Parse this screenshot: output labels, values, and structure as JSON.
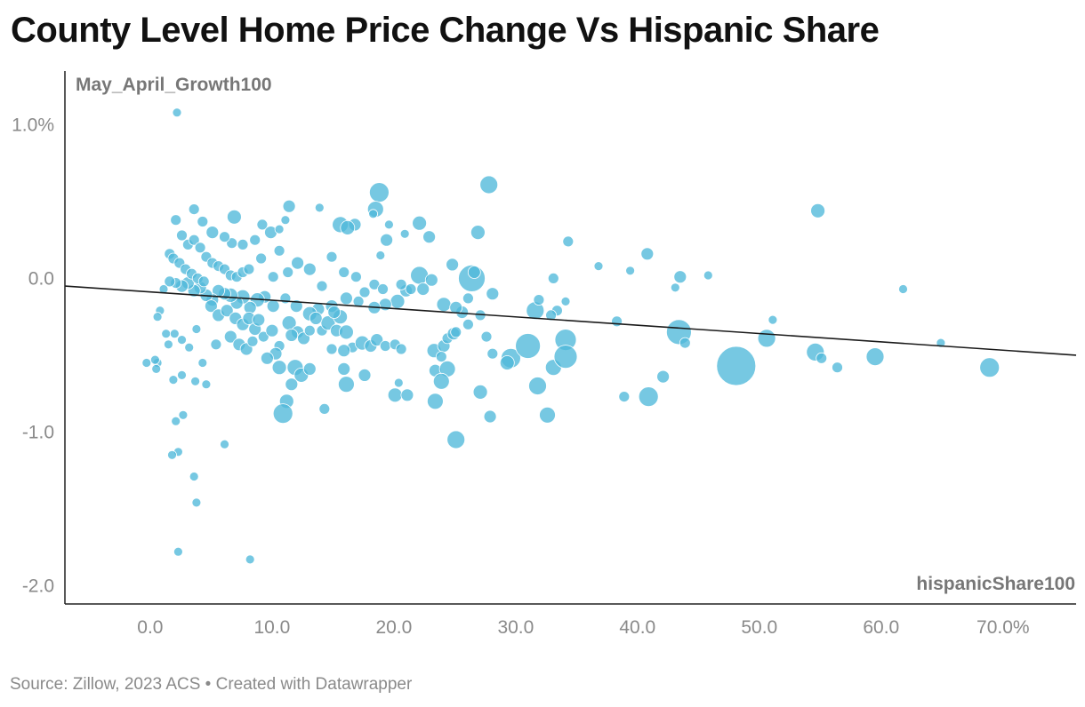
{
  "title": "County Level Home Price Change Vs Hispanic Share",
  "footer": "Source: Zillow, 2023 ACS • Created with Datawrapper",
  "chart_data": {
    "type": "scatter",
    "title": "County Level Home Price Change Vs Hispanic Share",
    "xlabel": "hispanicShare100",
    "ylabel": "May_April_Growth100",
    "xlim": [
      -7,
      76
    ],
    "ylim": [
      -2.12,
      1.35
    ],
    "x_ticks": [
      {
        "value": 0,
        "label": "0.0"
      },
      {
        "value": 10,
        "label": "10.0"
      },
      {
        "value": 20,
        "label": "20.0"
      },
      {
        "value": 30,
        "label": "30.0"
      },
      {
        "value": 40,
        "label": "40.0"
      },
      {
        "value": 50,
        "label": "50.0"
      },
      {
        "value": 60,
        "label": "60.0"
      },
      {
        "value": 70,
        "label": "70.0%"
      }
    ],
    "y_ticks": [
      {
        "value": 1,
        "label": "1.0%"
      },
      {
        "value": 0,
        "label": "0.0"
      },
      {
        "value": -1,
        "label": "-1.0"
      },
      {
        "value": -2,
        "label": "-2.0"
      }
    ],
    "grid": false,
    "color": "#4fb9da",
    "trendline": {
      "x": [
        -7,
        76
      ],
      "y": [
        -0.05,
        -0.5
      ]
    },
    "points": [
      [
        2.2,
        1.08,
        5
      ],
      [
        27.8,
        0.61,
        10
      ],
      [
        18.8,
        0.56,
        11
      ],
      [
        54.8,
        0.44,
        8
      ],
      [
        26.4,
        0.0,
        15
      ],
      [
        22.1,
        0.36,
        8
      ],
      [
        22.9,
        0.27,
        7
      ],
      [
        26.9,
        0.3,
        8
      ],
      [
        18.5,
        0.45,
        9
      ],
      [
        19.4,
        0.25,
        7
      ],
      [
        16.8,
        0.35,
        7
      ],
      [
        15.6,
        0.35,
        9
      ],
      [
        16.2,
        0.33,
        8
      ],
      [
        11.4,
        0.47,
        7
      ],
      [
        6.9,
        0.4,
        8
      ],
      [
        9.2,
        0.35,
        6
      ],
      [
        34.3,
        0.24,
        6
      ],
      [
        40.8,
        0.16,
        7
      ],
      [
        36.8,
        0.08,
        5
      ],
      [
        39.4,
        0.05,
        5
      ],
      [
        43.5,
        0.01,
        7
      ],
      [
        45.8,
        0.02,
        5
      ],
      [
        43.1,
        -0.06,
        5
      ],
      [
        61.8,
        -0.07,
        5
      ],
      [
        33.1,
        0.0,
        6
      ],
      [
        24.8,
        0.09,
        7
      ],
      [
        22.1,
        0.02,
        10
      ],
      [
        23.1,
        -0.01,
        7
      ],
      [
        21.0,
        -0.08,
        7
      ],
      [
        20.3,
        -0.15,
        8
      ],
      [
        19.3,
        -0.17,
        7
      ],
      [
        18.4,
        -0.19,
        7
      ],
      [
        17.1,
        -0.15,
        6
      ],
      [
        16.1,
        -0.13,
        7
      ],
      [
        14.9,
        -0.18,
        7
      ],
      [
        13.8,
        -0.2,
        7
      ],
      [
        13.1,
        -0.23,
        8
      ],
      [
        12.0,
        -0.18,
        7
      ],
      [
        11.1,
        -0.13,
        6
      ],
      [
        10.1,
        -0.18,
        7
      ],
      [
        9.4,
        -0.12,
        7
      ],
      [
        8.8,
        -0.14,
        8
      ],
      [
        8.2,
        -0.19,
        7
      ],
      [
        7.6,
        -0.12,
        8
      ],
      [
        7.1,
        -0.16,
        7
      ],
      [
        6.6,
        -0.11,
        8
      ],
      [
        6.1,
        -0.1,
        7
      ],
      [
        5.6,
        -0.08,
        7
      ],
      [
        5.1,
        -0.14,
        7
      ],
      [
        4.6,
        -0.11,
        7
      ],
      [
        4.1,
        -0.06,
        7
      ],
      [
        3.6,
        -0.08,
        7
      ],
      [
        3.1,
        -0.03,
        7
      ],
      [
        2.6,
        -0.05,
        7
      ],
      [
        2.1,
        -0.03,
        6
      ],
      [
        1.6,
        -0.02,
        6
      ],
      [
        1.1,
        -0.07,
        5
      ],
      [
        0.8,
        -0.21,
        5
      ],
      [
        0.6,
        -0.25,
        5
      ],
      [
        1.3,
        -0.36,
        5
      ],
      [
        1.5,
        -0.43,
        5
      ],
      [
        2.0,
        -0.36,
        5
      ],
      [
        2.6,
        -0.4,
        5
      ],
      [
        3.2,
        -0.45,
        5
      ],
      [
        3.8,
        -0.33,
        5
      ],
      [
        4.3,
        -0.55,
        5
      ],
      [
        2.6,
        -0.63,
        5
      ],
      [
        1.9,
        -0.66,
        5
      ],
      [
        3.7,
        -0.67,
        5
      ],
      [
        4.6,
        -0.69,
        5
      ],
      [
        0.6,
        -0.55,
        5
      ],
      [
        0.5,
        -0.59,
        5
      ],
      [
        0.4,
        -0.53,
        5
      ],
      [
        -0.3,
        -0.55,
        5
      ],
      [
        2.7,
        -0.89,
        5
      ],
      [
        2.1,
        -0.93,
        5
      ],
      [
        6.1,
        -1.08,
        5
      ],
      [
        2.3,
        -1.13,
        5
      ],
      [
        1.8,
        -1.15,
        5
      ],
      [
        3.6,
        -1.29,
        5
      ],
      [
        3.8,
        -1.46,
        5
      ],
      [
        2.3,
        -1.78,
        5
      ],
      [
        8.2,
        -1.83,
        5
      ],
      [
        5.0,
        -0.18,
        7
      ],
      [
        5.6,
        -0.24,
        7
      ],
      [
        6.3,
        -0.21,
        7
      ],
      [
        7.0,
        -0.26,
        7
      ],
      [
        7.6,
        -0.3,
        7
      ],
      [
        8.1,
        -0.26,
        7
      ],
      [
        8.6,
        -0.33,
        7
      ],
      [
        8.9,
        -0.27,
        7
      ],
      [
        6.6,
        -0.38,
        7
      ],
      [
        7.3,
        -0.43,
        7
      ],
      [
        7.9,
        -0.46,
        7
      ],
      [
        8.4,
        -0.41,
        6
      ],
      [
        5.4,
        -0.43,
        6
      ],
      [
        9.3,
        -0.38,
        6
      ],
      [
        10.0,
        -0.34,
        7
      ],
      [
        10.6,
        -0.44,
        6
      ],
      [
        11.4,
        -0.29,
        8
      ],
      [
        12.1,
        -0.35,
        7
      ],
      [
        12.6,
        -0.39,
        7
      ],
      [
        13.1,
        -0.34,
        6
      ],
      [
        14.1,
        -0.34,
        6
      ],
      [
        14.6,
        -0.29,
        8
      ],
      [
        15.3,
        -0.34,
        7
      ],
      [
        16.1,
        -0.35,
        8
      ],
      [
        16.6,
        -0.45,
        6
      ],
      [
        17.4,
        -0.42,
        8
      ],
      [
        18.1,
        -0.44,
        7
      ],
      [
        18.6,
        -0.4,
        7
      ],
      [
        19.3,
        -0.44,
        6
      ],
      [
        20.1,
        -0.43,
        6
      ],
      [
        20.6,
        -0.46,
        6
      ],
      [
        15.6,
        -0.25,
        8
      ],
      [
        15.1,
        -0.22,
        7
      ],
      [
        13.6,
        -0.26,
        7
      ],
      [
        11.6,
        -0.37,
        7
      ],
      [
        10.3,
        -0.49,
        7
      ],
      [
        9.6,
        -0.52,
        7
      ],
      [
        10.6,
        -0.58,
        8
      ],
      [
        11.9,
        -0.58,
        9
      ],
      [
        12.4,
        -0.63,
        8
      ],
      [
        13.1,
        -0.59,
        7
      ],
      [
        14.9,
        -0.46,
        6
      ],
      [
        15.9,
        -0.47,
        7
      ],
      [
        15.9,
        -0.59,
        7
      ],
      [
        16.1,
        -0.69,
        9
      ],
      [
        17.6,
        -0.63,
        7
      ],
      [
        11.2,
        -0.8,
        8
      ],
      [
        11.6,
        -0.69,
        7
      ],
      [
        10.9,
        -0.88,
        11
      ],
      [
        14.3,
        -0.85,
        6
      ],
      [
        20.1,
        -0.76,
        8
      ],
      [
        21.1,
        -0.76,
        7
      ],
      [
        20.4,
        -0.68,
        5
      ],
      [
        23.3,
        -0.47,
        8
      ],
      [
        24.1,
        -0.44,
        7
      ],
      [
        24.4,
        -0.39,
        6
      ],
      [
        24.9,
        -0.36,
        7
      ],
      [
        23.9,
        -0.51,
        6
      ],
      [
        23.4,
        -0.6,
        7
      ],
      [
        24.4,
        -0.59,
        9
      ],
      [
        23.9,
        -0.67,
        9
      ],
      [
        23.4,
        -0.8,
        9
      ],
      [
        25.1,
        -0.35,
        6
      ],
      [
        25.6,
        -0.22,
        7
      ],
      [
        26.1,
        -0.13,
        6
      ],
      [
        27.1,
        -0.24,
        6
      ],
      [
        26.1,
        -0.3,
        6
      ],
      [
        27.6,
        -0.38,
        6
      ],
      [
        28.1,
        -0.49,
        6
      ],
      [
        27.1,
        -0.74,
        8
      ],
      [
        27.9,
        -0.9,
        7
      ],
      [
        25.1,
        -1.05,
        10
      ],
      [
        29.6,
        -0.52,
        11
      ],
      [
        29.3,
        -0.55,
        8
      ],
      [
        31.0,
        -0.44,
        14
      ],
      [
        31.6,
        -0.21,
        10
      ],
      [
        31.8,
        -0.7,
        10
      ],
      [
        32.6,
        -0.89,
        9
      ],
      [
        33.1,
        -0.58,
        9
      ],
      [
        33.4,
        -0.21,
        6
      ],
      [
        34.1,
        -0.4,
        12
      ],
      [
        34.1,
        -0.51,
        13
      ],
      [
        38.9,
        -0.77,
        6
      ],
      [
        40.9,
        -0.77,
        11
      ],
      [
        38.3,
        -0.28,
        6
      ],
      [
        42.1,
        -0.64,
        7
      ],
      [
        43.4,
        -0.35,
        14
      ],
      [
        43.9,
        -0.42,
        6
      ],
      [
        48.1,
        -0.57,
        22
      ],
      [
        50.6,
        -0.39,
        10
      ],
      [
        51.1,
        -0.27,
        5
      ],
      [
        54.6,
        -0.48,
        10
      ],
      [
        55.1,
        -0.52,
        6
      ],
      [
        56.4,
        -0.58,
        6
      ],
      [
        59.5,
        -0.51,
        10
      ],
      [
        64.9,
        -0.42,
        5
      ],
      [
        68.9,
        -0.58,
        11
      ],
      [
        17.6,
        -0.09,
        6
      ],
      [
        18.4,
        -0.04,
        6
      ],
      [
        19.1,
        -0.07,
        6
      ],
      [
        20.6,
        -0.04,
        6
      ],
      [
        21.4,
        -0.07,
        6
      ],
      [
        22.4,
        -0.07,
        7
      ],
      [
        24.1,
        -0.17,
        8
      ],
      [
        25.1,
        -0.19,
        7
      ],
      [
        26.6,
        0.04,
        7
      ],
      [
        28.1,
        -0.1,
        7
      ],
      [
        31.9,
        -0.14,
        6
      ],
      [
        32.9,
        -0.24,
        6
      ],
      [
        34.1,
        -0.15,
        5
      ],
      [
        14.1,
        -0.05,
        6
      ],
      [
        13.1,
        0.06,
        7
      ],
      [
        12.1,
        0.1,
        7
      ],
      [
        11.3,
        0.04,
        6
      ],
      [
        10.6,
        0.18,
        6
      ],
      [
        9.9,
        0.3,
        7
      ],
      [
        8.6,
        0.25,
        6
      ],
      [
        9.1,
        0.13,
        6
      ],
      [
        10.1,
        0.01,
        6
      ],
      [
        7.6,
        0.22,
        6
      ],
      [
        6.7,
        0.23,
        6
      ],
      [
        6.1,
        0.27,
        6
      ],
      [
        5.1,
        0.3,
        7
      ],
      [
        4.3,
        0.37,
        6
      ],
      [
        3.6,
        0.45,
        6
      ],
      [
        2.1,
        0.38,
        6
      ],
      [
        2.6,
        0.28,
        6
      ],
      [
        3.1,
        0.22,
        6
      ],
      [
        3.6,
        0.25,
        6
      ],
      [
        4.1,
        0.2,
        6
      ],
      [
        4.6,
        0.14,
        6
      ],
      [
        5.1,
        0.1,
        6
      ],
      [
        5.6,
        0.08,
        6
      ],
      [
        6.1,
        0.06,
        6
      ],
      [
        6.6,
        0.02,
        6
      ],
      [
        7.1,
        0.01,
        6
      ],
      [
        7.6,
        0.04,
        6
      ],
      [
        8.1,
        0.06,
        6
      ],
      [
        1.6,
        0.16,
        6
      ],
      [
        1.9,
        0.13,
        6
      ],
      [
        2.4,
        0.1,
        6
      ],
      [
        2.9,
        0.06,
        6
      ],
      [
        3.4,
        0.03,
        6
      ],
      [
        3.9,
        0.0,
        6
      ],
      [
        4.4,
        -0.02,
        6
      ],
      [
        14.9,
        0.14,
        6
      ],
      [
        15.9,
        0.04,
        6
      ],
      [
        16.9,
        0.01,
        6
      ],
      [
        18.9,
        0.15,
        5
      ],
      [
        20.9,
        0.29,
        5
      ],
      [
        10.6,
        0.32,
        5
      ],
      [
        11.1,
        0.38,
        5
      ],
      [
        13.9,
        0.46,
        5
      ],
      [
        18.3,
        0.42,
        5
      ],
      [
        19.6,
        0.35,
        5
      ]
    ]
  }
}
